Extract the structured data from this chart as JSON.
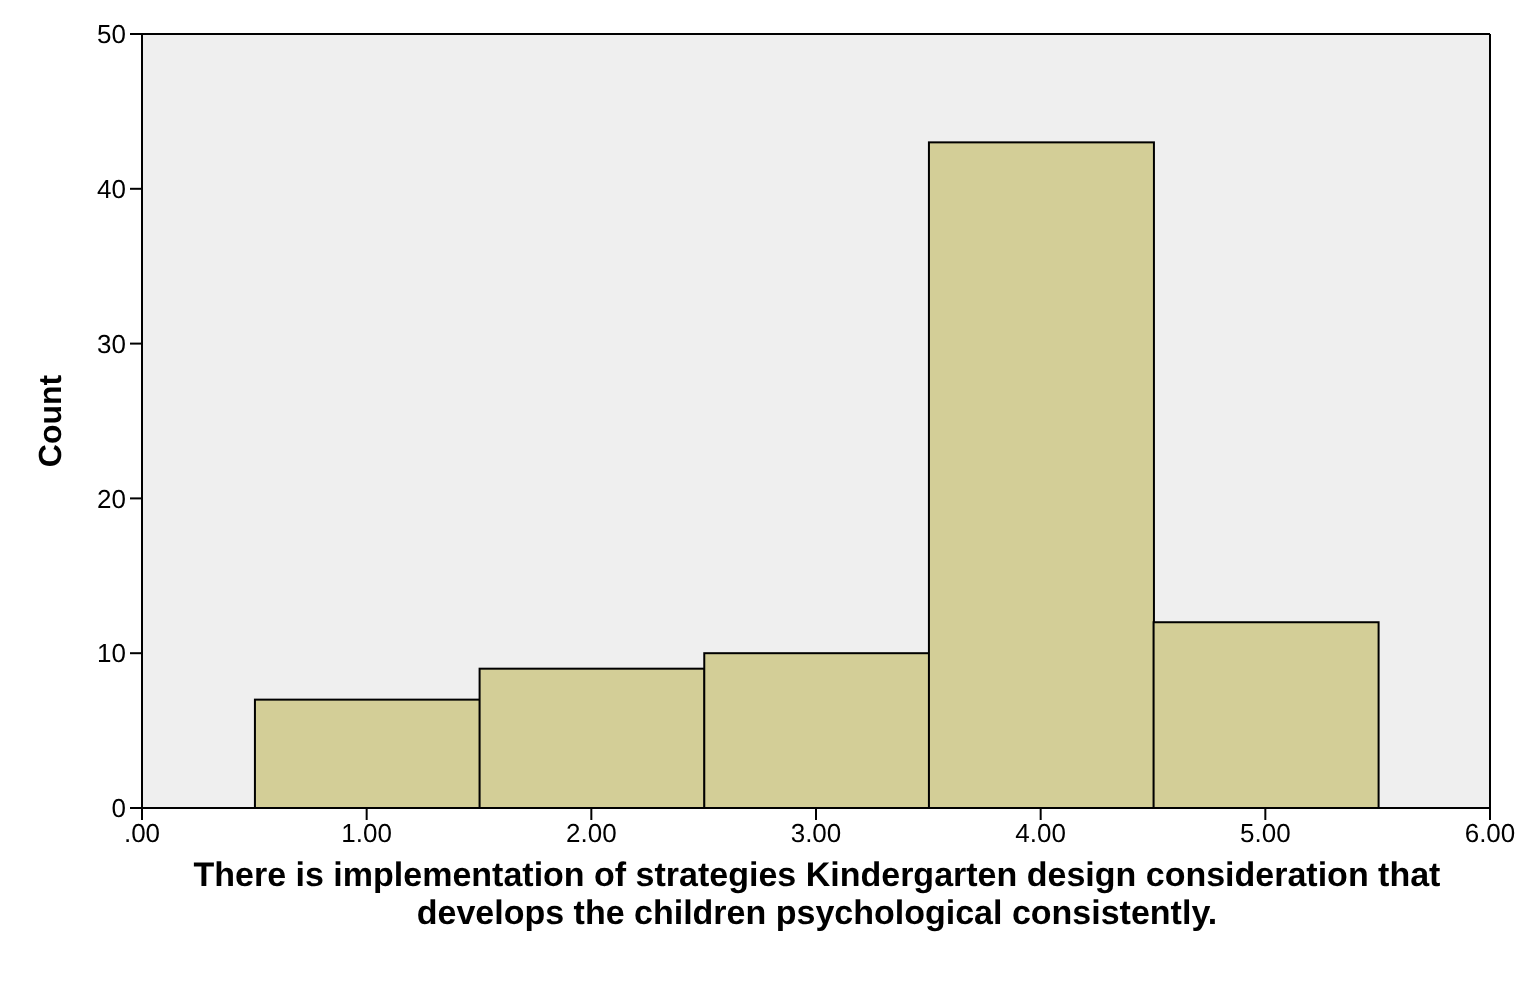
{
  "chart_data": {
    "type": "histogram",
    "xlabel": "There is implementation of strategies Kindergarten design consideration that develops the children psychological consistently.",
    "ylabel": "Count",
    "bins": [
      0.5,
      1.5,
      2.5,
      3.5,
      4.5,
      5.5
    ],
    "values": [
      7,
      9,
      10,
      43,
      12
    ],
    "color": "#d3ce97",
    "xlim": [
      0,
      6
    ],
    "xticks": [
      {
        "value": 0,
        "label": ".00"
      },
      {
        "value": 1,
        "label": "1.00"
      },
      {
        "value": 2,
        "label": "2.00"
      },
      {
        "value": 3,
        "label": "3.00"
      },
      {
        "value": 4,
        "label": "4.00"
      },
      {
        "value": 5,
        "label": "5.00"
      },
      {
        "value": 6,
        "label": "6.00"
      }
    ],
    "ylim": [
      0,
      50
    ],
    "yticks": [
      0,
      10,
      20,
      30,
      40,
      50
    ],
    "grid": false
  }
}
